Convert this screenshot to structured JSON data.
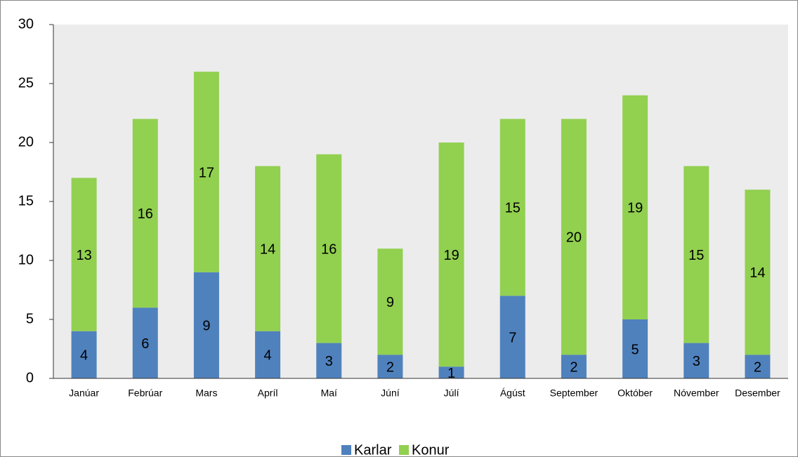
{
  "chart_data": {
    "type": "stacked_bar",
    "categories": [
      "Janúar",
      "Febrúar",
      "Mars",
      "Apríl",
      "Maí",
      "Júní",
      "Júlí",
      "Ágúst",
      "September",
      "Október",
      "Nóvember",
      "Desember"
    ],
    "series": [
      {
        "name": "Karlar",
        "color": "#4f81bd",
        "values": [
          4,
          6,
          9,
          4,
          3,
          2,
          1,
          7,
          2,
          5,
          3,
          2
        ]
      },
      {
        "name": "Konur",
        "color": "#92d050",
        "values": [
          13,
          16,
          17,
          14,
          16,
          9,
          19,
          15,
          20,
          19,
          15,
          14
        ]
      }
    ],
    "ylim": [
      0,
      30
    ],
    "yticks": [
      0,
      5,
      10,
      15,
      20,
      25,
      30
    ],
    "legend": "bottom"
  }
}
